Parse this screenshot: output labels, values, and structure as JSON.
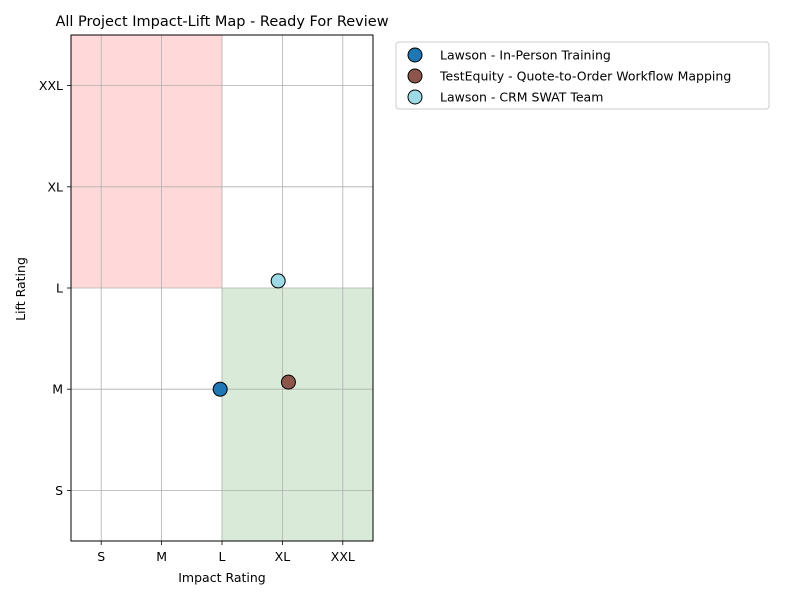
{
  "chart_data": {
    "type": "scatter",
    "title": "All Project Impact-Lift Map - Ready For Review",
    "xlabel": "Impact Rating",
    "ylabel": "Lift Rating",
    "x_ticks": [
      "S",
      "M",
      "L",
      "XL",
      "XXL"
    ],
    "y_ticks": [
      "S",
      "M",
      "L",
      "XL",
      "XXL"
    ],
    "x_tick_values": [
      1,
      2,
      3,
      4,
      5
    ],
    "y_tick_values": [
      1,
      2,
      3,
      4,
      5
    ],
    "xlim": [
      0.5,
      5.5
    ],
    "ylim": [
      0.5,
      5.5
    ],
    "grid": true,
    "legend_position": "outside-right-top",
    "regions": [
      {
        "name": "high-lift-low-impact",
        "x": [
          0.5,
          3
        ],
        "y": [
          3,
          5.5
        ],
        "color": "#ffd9d9"
      },
      {
        "name": "low-lift-high-impact",
        "x": [
          3,
          5.5
        ],
        "y": [
          0.5,
          3
        ],
        "color": "#d9ead9"
      }
    ],
    "series": [
      {
        "name": "Lawson - In-Person Training",
        "color": "#1f77b4",
        "points": [
          {
            "x": 2.97,
            "y": 2.0
          }
        ]
      },
      {
        "name": "TestEquity - Quote-to-Order Workflow Mapping",
        "color": "#8c564b",
        "points": [
          {
            "x": 4.1,
            "y": 2.07
          }
        ]
      },
      {
        "name": "Lawson - CRM SWAT Team",
        "color": "#9edae5",
        "points": [
          {
            "x": 3.93,
            "y": 3.07
          }
        ]
      }
    ]
  }
}
